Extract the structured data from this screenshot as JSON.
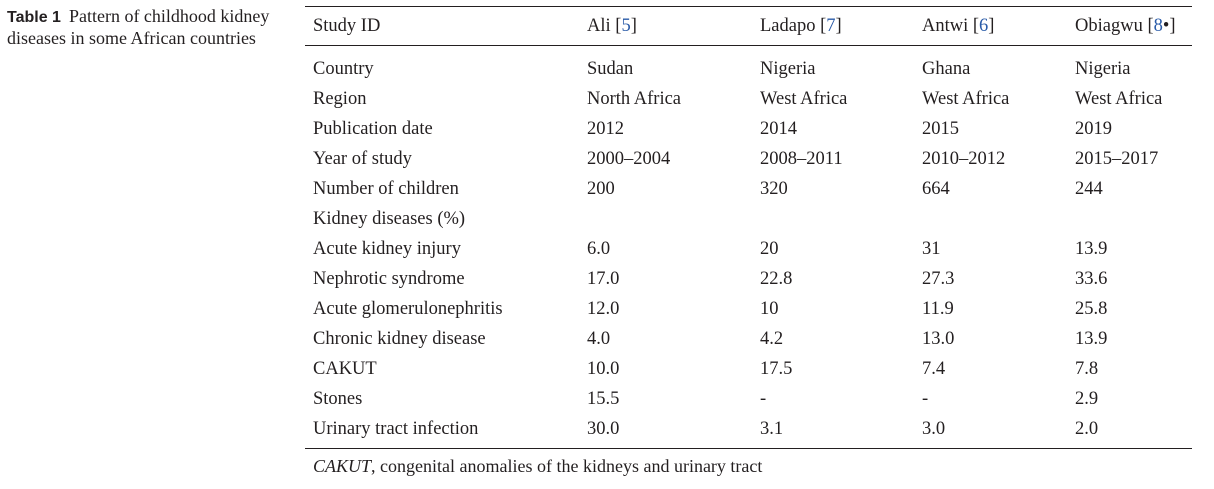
{
  "caption": {
    "label": "Table 1",
    "text": "Pattern of childhood kidney diseases in some African countries"
  },
  "header": {
    "study_id": "Study ID",
    "studies": [
      {
        "author": "Ali",
        "ref": "5",
        "suffix": ""
      },
      {
        "author": "Ladapo",
        "ref": "7",
        "suffix": ""
      },
      {
        "author": "Antwi",
        "ref": "6",
        "suffix": ""
      },
      {
        "author": "Obiagwu",
        "ref": "8",
        "suffix": "•"
      }
    ]
  },
  "rows": [
    {
      "label": "Country",
      "values": [
        "Sudan",
        "Nigeria",
        "Ghana",
        "Nigeria"
      ]
    },
    {
      "label": "Region",
      "values": [
        "North Africa",
        "West Africa",
        "West Africa",
        "West Africa"
      ]
    },
    {
      "label": "Publication date",
      "values": [
        "2012",
        "2014",
        "2015",
        "2019"
      ]
    },
    {
      "label": "Year of study",
      "values": [
        "2000–2004",
        "2008–2011",
        "2010–2012",
        "2015–2017"
      ]
    },
    {
      "label": "Number of children",
      "values": [
        "200",
        "320",
        "664",
        "244"
      ]
    },
    {
      "label": "Kidney diseases (%)",
      "values": [
        "",
        "",
        "",
        ""
      ]
    },
    {
      "label": "Acute kidney injury",
      "values": [
        "6.0",
        "20",
        "31",
        "13.9"
      ]
    },
    {
      "label": "Nephrotic syndrome",
      "values": [
        "17.0",
        "22.8",
        "27.3",
        "33.6"
      ]
    },
    {
      "label": "Acute glomerulonephritis",
      "values": [
        "12.0",
        "10",
        "11.9",
        "25.8"
      ]
    },
    {
      "label": "Chronic kidney disease",
      "values": [
        "4.0",
        "4.2",
        "13.0",
        "13.9"
      ]
    },
    {
      "label": "CAKUT",
      "values": [
        "10.0",
        "17.5",
        "7.4",
        "7.8"
      ]
    },
    {
      "label": "Stones",
      "values": [
        "15.5",
        "-",
        "-",
        "2.9"
      ]
    },
    {
      "label": "Urinary tract infection",
      "values": [
        "30.0",
        "3.1",
        "3.0",
        "2.0"
      ]
    }
  ],
  "footnote": {
    "term": "CAKUT",
    "definition": ", congenital anomalies of the kidneys and urinary tract"
  }
}
